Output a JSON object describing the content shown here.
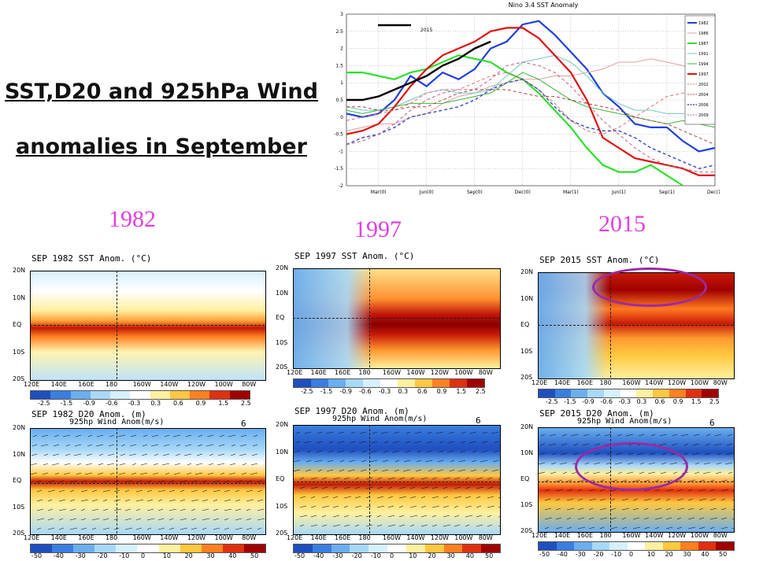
{
  "heading": {
    "line1": "SST,D20 and 925hPa Wind",
    "line2": "anomalies in September"
  },
  "years": [
    "1982",
    "1997",
    "2015"
  ],
  "nino": {
    "title": "Nino 3.4 SST Anomaly",
    "y_ticks": [
      "3",
      "2.5",
      "2",
      "1.5",
      "1",
      "0.5",
      "0",
      "-0.5",
      "-1",
      "-1.5",
      "-2"
    ],
    "x_ticks": [
      "Mar(0)",
      "Jun(0)",
      "Sep(0)",
      "Dec(0)",
      "Mar(1)",
      "Jun(1)",
      "Sep(1)",
      "Dec(1)"
    ],
    "inline_label": "2015",
    "legend": [
      "1982",
      "1986",
      "1987",
      "1991",
      "1994",
      "1997",
      "2002",
      "2004",
      "2006",
      "2009"
    ]
  },
  "chart_data": {
    "type": "line",
    "title": "Nino 3.4 SST Anomaly",
    "ylim": [
      -2,
      3
    ],
    "x": [
      "Jan(0)",
      "Feb(0)",
      "Mar(0)",
      "Apr(0)",
      "May(0)",
      "Jun(0)",
      "Jul(0)",
      "Aug(0)",
      "Sep(0)",
      "Oct(0)",
      "Nov(0)",
      "Dec(0)",
      "Jan(1)",
      "Feb(1)",
      "Mar(1)",
      "Apr(1)",
      "May(1)",
      "Jun(1)",
      "Jul(1)",
      "Aug(1)",
      "Sep(1)",
      "Oct(1)",
      "Nov(1)",
      "Dec(1)"
    ],
    "series": [
      {
        "name": "1982",
        "color": "#1f3fe0",
        "width": 2.2,
        "dash": "",
        "values": [
          0.1,
          0.0,
          0.1,
          0.5,
          1.2,
          0.9,
          1.3,
          1.1,
          1.4,
          2.0,
          2.2,
          2.7,
          2.8,
          2.4,
          1.9,
          1.4,
          0.7,
          0.3,
          -0.2,
          -0.3,
          -0.3,
          -0.7,
          -1.0,
          -0.9
        ]
      },
      {
        "name": "1986",
        "color": "#e0a0a0",
        "width": 1,
        "dash": "",
        "values": [
          -0.4,
          -0.3,
          -0.2,
          -0.2,
          0.0,
          0.1,
          0.4,
          0.6,
          0.7,
          0.9,
          1.0,
          1.1,
          1.1,
          1.2,
          1.2,
          1.3,
          1.4,
          1.6,
          1.6,
          1.7,
          1.6,
          1.5,
          1.3,
          1.1
        ]
      },
      {
        "name": "1987",
        "color": "#2ee02e",
        "width": 2.2,
        "dash": "",
        "values": [
          1.3,
          1.3,
          1.2,
          1.1,
          1.3,
          1.4,
          1.6,
          1.8,
          1.7,
          1.6,
          1.3,
          1.1,
          0.7,
          0.2,
          -0.3,
          -0.9,
          -1.4,
          -1.6,
          -1.6,
          -1.4,
          -1.7,
          -2.0,
          null,
          null
        ]
      },
      {
        "name": "1991",
        "color": "#70c8c8",
        "width": 1,
        "dash": "",
        "values": [
          0.3,
          0.2,
          0.2,
          0.3,
          0.5,
          0.7,
          0.8,
          0.7,
          0.7,
          0.8,
          1.2,
          1.6,
          1.7,
          1.8,
          1.6,
          1.2,
          0.7,
          0.4,
          0.2,
          0.2,
          0.1,
          0.1,
          0.0,
          -0.1
        ]
      },
      {
        "name": "1994",
        "color": "#3eb53e",
        "width": 1,
        "dash": "",
        "values": [
          0.2,
          0.1,
          0.2,
          0.3,
          0.4,
          0.4,
          0.4,
          0.5,
          0.6,
          0.7,
          1.0,
          1.3,
          1.1,
          0.8,
          0.5,
          0.3,
          0.2,
          0.1,
          0.0,
          -0.1,
          -0.2,
          -0.1,
          -0.2,
          -0.3
        ]
      },
      {
        "name": "1997",
        "color": "#e01010",
        "width": 2.2,
        "dash": "",
        "values": [
          -0.5,
          -0.4,
          -0.2,
          0.3,
          0.9,
          1.4,
          1.8,
          2.0,
          2.2,
          2.5,
          2.6,
          2.6,
          2.3,
          1.8,
          1.3,
          0.5,
          -0.6,
          -0.9,
          -1.2,
          -1.3,
          -1.4,
          -1.5,
          -1.7,
          -1.7
        ]
      },
      {
        "name": "2002",
        "color": "#e07070",
        "width": 1,
        "dash": "4,3",
        "values": [
          -0.1,
          0.0,
          0.1,
          0.2,
          0.4,
          0.7,
          0.8,
          0.8,
          1.0,
          1.2,
          1.3,
          1.1,
          0.8,
          0.4,
          -0.1,
          -0.4,
          -0.5,
          -0.3,
          0.0,
          0.3,
          0.6,
          0.7,
          0.7,
          0.4
        ]
      },
      {
        "name": "2004",
        "color": "#b04040",
        "width": 1,
        "dash": "4,3",
        "values": [
          0.3,
          0.3,
          0.2,
          0.2,
          0.3,
          0.3,
          0.5,
          0.7,
          0.8,
          0.8,
          0.8,
          0.7,
          0.6,
          0.6,
          0.5,
          0.4,
          0.3,
          0.2,
          0.0,
          -0.1,
          -0.2,
          -0.4,
          -0.6,
          -0.8
        ]
      },
      {
        "name": "2006",
        "color": "#4050c0",
        "width": 1.5,
        "dash": "4,3",
        "values": [
          -0.8,
          -0.6,
          -0.5,
          -0.3,
          0.0,
          0.1,
          0.2,
          0.3,
          0.5,
          0.8,
          1.0,
          1.1,
          0.8,
          0.3,
          -0.1,
          -0.3,
          -0.4,
          -0.4,
          -0.6,
          -0.9,
          -1.1,
          -1.3,
          -1.5,
          -1.4
        ]
      },
      {
        "name": "2009",
        "color": "#c06080",
        "width": 1,
        "dash": "4,3",
        "values": [
          -0.8,
          -0.7,
          -0.5,
          -0.2,
          0.2,
          0.5,
          0.7,
          0.8,
          0.8,
          1.1,
          1.5,
          1.6,
          1.5,
          1.3,
          0.9,
          0.4,
          -0.1,
          -0.5,
          -0.9,
          -1.2,
          -1.4,
          -1.5,
          -1.6,
          -1.6
        ]
      },
      {
        "name": "2015",
        "color": "#000000",
        "width": 2.4,
        "dash": "",
        "values": [
          0.5,
          0.5,
          0.6,
          0.8,
          1.0,
          1.2,
          1.5,
          1.7,
          2.0,
          2.2,
          null,
          null,
          null,
          null,
          null,
          null,
          null,
          null,
          null,
          null,
          null,
          null,
          null,
          null
        ]
      }
    ]
  },
  "maps": {
    "lon_ticks": [
      "120E",
      "140E",
      "160E",
      "180",
      "160W",
      "140W",
      "120W",
      "100W",
      "80W"
    ],
    "lat_ticks": [
      "20N",
      "10N",
      "EQ",
      "10S",
      "20S"
    ],
    "sst_scale": [
      "-2.5",
      "-1.5",
      "-0.9",
      "-0.6",
      "-0.3",
      "0.3",
      "0.6",
      "0.9",
      "1.5",
      "2.5"
    ],
    "d20_scale": [
      "-50",
      "-40",
      "-30",
      "-20",
      "-10",
      "0",
      "10",
      "20",
      "30",
      "40",
      "50"
    ],
    "ref_arrow": "6",
    "wind_title": "925hp Wind Anom(m/s)",
    "sst_titles": [
      "SEP 1982 SST Anom. (°C)",
      "SEP 1997 SST Anom. (°C)",
      "SEP 2015 SST Anom. (°C)"
    ],
    "d20_titles": [
      "SEP 1982 D20 Anom. (m)",
      "SEP 1997 D20 Anom. (m)",
      "SEP 2015 D20 Anom. (m)"
    ]
  },
  "colors": {
    "scale": [
      "#1f4fbf",
      "#3a7ee0",
      "#6aaef0",
      "#a8d8f8",
      "#d6f0ff",
      "#ffffff",
      "#fff0a0",
      "#ffc840",
      "#ff8020",
      "#e03010",
      "#a00000"
    ]
  }
}
